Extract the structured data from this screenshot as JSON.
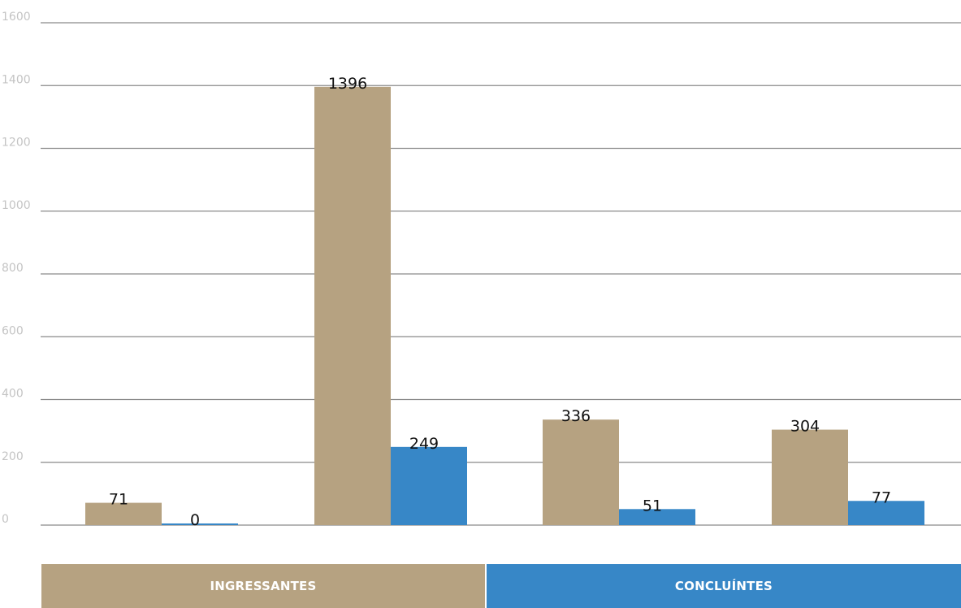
{
  "chart_data": {
    "type": "bar",
    "categories": [
      "",
      "",
      "",
      ""
    ],
    "series": [
      {
        "name": "INGRESSANTES",
        "color": "#b6a281",
        "values": [
          71,
          1396,
          336,
          304
        ]
      },
      {
        "name": "CONCLUÍNTES",
        "color": "#3787c7",
        "values": [
          0,
          249,
          51,
          77
        ]
      }
    ],
    "ylim": [
      0,
      1600
    ],
    "yticks": [
      0,
      200,
      400,
      600,
      800,
      1000,
      1200,
      1400,
      1600
    ],
    "grid": true,
    "legend_position": "bottom",
    "xlabel": "",
    "ylabel": "",
    "title": ""
  },
  "legend": {
    "ingressantes_label": "INGRESSANTES",
    "concluintes_label": "CONCLUÍNTES"
  }
}
